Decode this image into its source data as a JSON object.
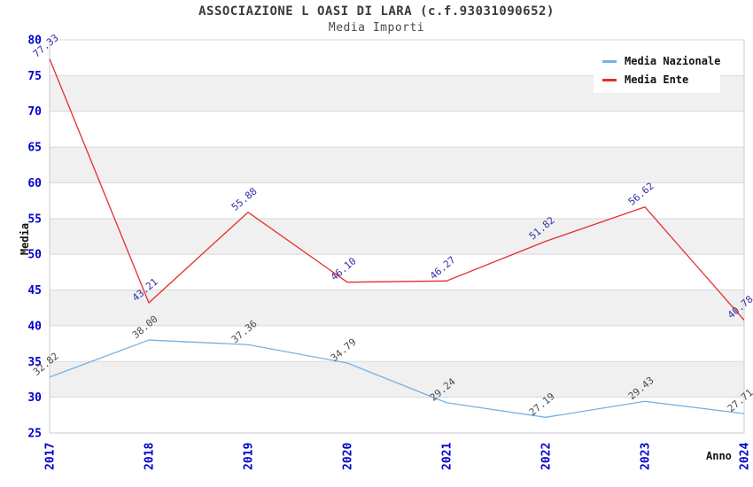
{
  "header": {
    "title": "ASSOCIAZIONE L OASI DI LARA (c.f.93031090652)",
    "subtitle": "Media Importi"
  },
  "axes": {
    "y_title": "Media",
    "x_title": "Anno"
  },
  "legend": {
    "position": "top-right",
    "items": [
      {
        "label": "Media Nazionale"
      },
      {
        "label": "Media Ente"
      }
    ]
  },
  "chart_data": {
    "type": "line",
    "title": "ASSOCIAZIONE L OASI DI LARA (c.f.93031090652)",
    "subtitle": "Media Importi",
    "xlabel": "Anno",
    "ylabel": "Media",
    "categories": [
      "2017",
      "2018",
      "2019",
      "2020",
      "2021",
      "2022",
      "2023",
      "2024"
    ],
    "series": [
      {
        "name": "Media Nazionale",
        "color": "#77b1e2",
        "label_color": "#4a4a4a",
        "values": [
          32.82,
          38.0,
          37.36,
          34.79,
          29.24,
          27.19,
          29.43,
          27.71
        ]
      },
      {
        "name": "Media Ente",
        "color": "#e62d2d",
        "label_color": "#2f2fa8",
        "values": [
          77.33,
          43.21,
          55.88,
          46.1,
          46.27,
          51.82,
          56.62,
          40.78
        ]
      }
    ],
    "ylim": [
      25,
      80
    ],
    "yticks": [
      25,
      30,
      35,
      40,
      45,
      50,
      55,
      60,
      65,
      70,
      75,
      80
    ],
    "value_label_decimals": 2,
    "grid": true,
    "alternating_bands": true,
    "legend_position": "top-right",
    "colors": {
      "tick_label": "#0000cc",
      "band": "#f0f0f0",
      "gridline": "#d9d9d9",
      "axis_line": "#c9c9c9",
      "title_text": "#3b3b3b"
    }
  }
}
